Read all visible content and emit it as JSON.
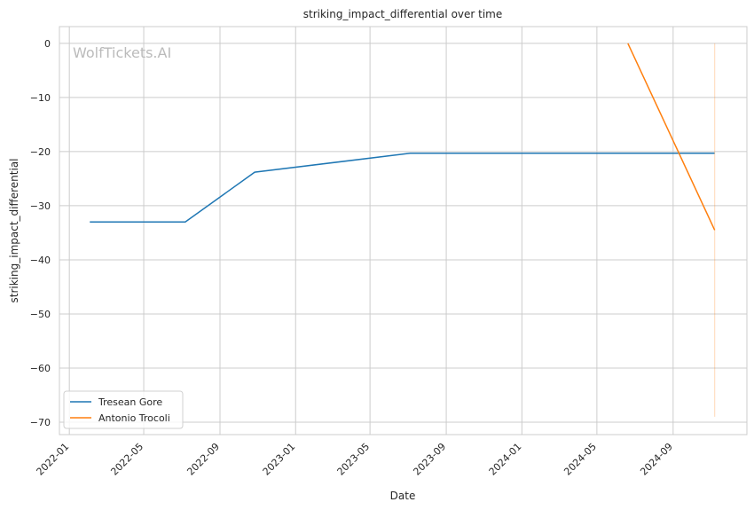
{
  "chart_data": {
    "type": "line",
    "title": "striking_impact_differential over time",
    "xlabel": "Date",
    "ylabel": "striking_impact_differential",
    "watermark": "WolfTickets.AI",
    "xlim": [
      "2021-12-16",
      "2024-12-29"
    ],
    "ylim": [
      -72.3,
      3.1
    ],
    "xticks": [
      "2022-01",
      "2022-05",
      "2022-09",
      "2023-01",
      "2023-05",
      "2023-09",
      "2024-01",
      "2024-05",
      "2024-09"
    ],
    "yticks": [
      0,
      -10,
      -20,
      -30,
      -40,
      -50,
      -60,
      -70
    ],
    "grid": true,
    "legend_placement": "lower-left",
    "series": [
      {
        "name": "Tresean Gore",
        "color": "#1f77b4",
        "x": [
          "2022-02-03",
          "2022-07-07",
          "2022-10-27",
          "2023-07-05",
          "2024-11-07"
        ],
        "y": [
          -33,
          -33,
          -23.8,
          -20.3,
          -20.3
        ]
      },
      {
        "name": "Antonio Trocoli",
        "color": "#ff7f0e",
        "x": [
          "2024-06-20",
          "2024-11-07"
        ],
        "y": [
          0,
          -34.5
        ],
        "band": {
          "x": "2024-11-07",
          "low": -69,
          "high": 0
        }
      }
    ]
  }
}
